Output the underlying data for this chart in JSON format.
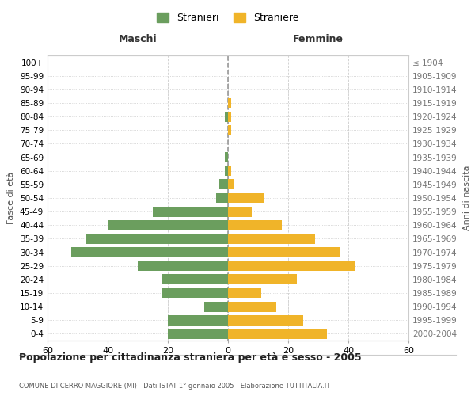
{
  "age_groups": [
    "100+",
    "95-99",
    "90-94",
    "85-89",
    "80-84",
    "75-79",
    "70-74",
    "65-69",
    "60-64",
    "55-59",
    "50-54",
    "45-49",
    "40-44",
    "35-39",
    "30-34",
    "25-29",
    "20-24",
    "15-19",
    "10-14",
    "5-9",
    "0-4"
  ],
  "birth_years": [
    "≤ 1904",
    "1905-1909",
    "1910-1914",
    "1915-1919",
    "1920-1924",
    "1925-1929",
    "1930-1934",
    "1935-1939",
    "1940-1944",
    "1945-1949",
    "1950-1954",
    "1955-1959",
    "1960-1964",
    "1965-1969",
    "1970-1974",
    "1975-1979",
    "1980-1984",
    "1985-1989",
    "1990-1994",
    "1995-1999",
    "2000-2004"
  ],
  "maschi": [
    0,
    0,
    0,
    0,
    1,
    0,
    0,
    1,
    1,
    3,
    4,
    25,
    40,
    47,
    52,
    30,
    22,
    22,
    8,
    20,
    20
  ],
  "femmine": [
    0,
    0,
    0,
    1,
    1,
    1,
    0,
    0,
    1,
    2,
    12,
    8,
    18,
    29,
    37,
    42,
    23,
    11,
    16,
    25,
    33
  ],
  "maschi_color": "#6b9e5e",
  "femmine_color": "#f0b429",
  "background_color": "#ffffff",
  "grid_color": "#cccccc",
  "grid_color_x": "#aaaaaa",
  "zero_line_color": "#999999",
  "xlim": 60,
  "title": "Popolazione per cittadinanza straniera per età e sesso - 2005",
  "subtitle": "COMUNE DI CERRO MAGGIORE (MI) - Dati ISTAT 1° gennaio 2005 - Elaborazione TUTTITALIA.IT",
  "ylabel_left": "Fasce di età",
  "ylabel_right": "Anni di nascita",
  "legend_stranieri": "Stranieri",
  "legend_straniere": "Straniere",
  "maschi_label": "Maschi",
  "femmine_label": "Femmine"
}
